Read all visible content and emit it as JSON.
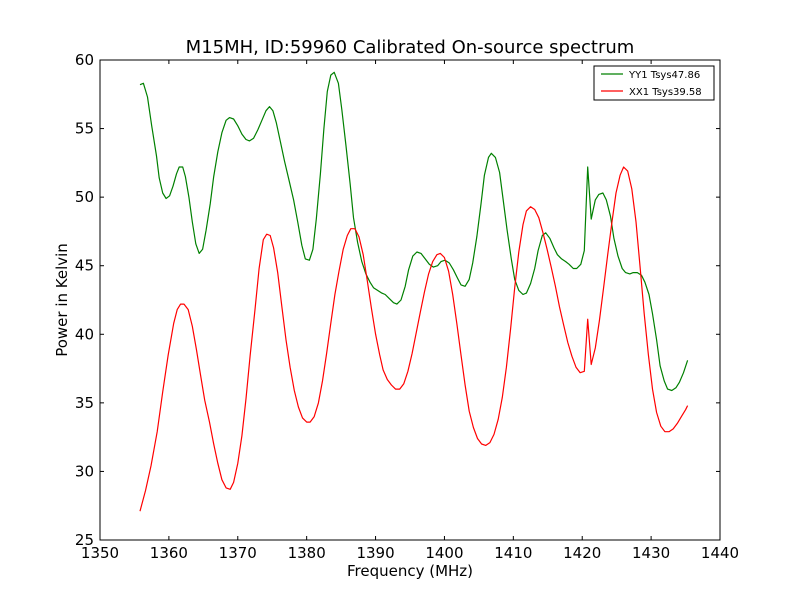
{
  "chart_data": {
    "type": "line",
    "title": "M15MH, ID:59960 Calibrated On-source spectrum",
    "xlabel": "Frequency (MHz)",
    "ylabel": "Power in Kelvin",
    "xlim": [
      1350,
      1440
    ],
    "ylim": [
      25,
      60
    ],
    "xticks": [
      "1350",
      "1360",
      "1370",
      "1380",
      "1390",
      "1400",
      "1410",
      "1420",
      "1430",
      "1440"
    ],
    "yticks": [
      "25",
      "30",
      "35",
      "40",
      "45",
      "50",
      "55",
      "60"
    ],
    "grid": false,
    "legend_position": "top-right",
    "series": [
      {
        "name": "YY1 Tsys47.86",
        "color": "#008000",
        "points": [
          [
            1355.8,
            58.2
          ],
          [
            1356.3,
            58.3
          ],
          [
            1356.9,
            57.3
          ],
          [
            1357.5,
            55.2
          ],
          [
            1358.2,
            53.0
          ],
          [
            1358.6,
            51.4
          ],
          [
            1359.1,
            50.3
          ],
          [
            1359.6,
            49.9
          ],
          [
            1360.1,
            50.1
          ],
          [
            1360.6,
            50.8
          ],
          [
            1361.1,
            51.7
          ],
          [
            1361.5,
            52.2
          ],
          [
            1362.0,
            52.2
          ],
          [
            1362.4,
            51.5
          ],
          [
            1362.9,
            50.0
          ],
          [
            1363.4,
            48.2
          ],
          [
            1363.9,
            46.6
          ],
          [
            1364.4,
            45.9
          ],
          [
            1364.9,
            46.2
          ],
          [
            1365.4,
            47.6
          ],
          [
            1366.0,
            49.5
          ],
          [
            1366.5,
            51.5
          ],
          [
            1367.1,
            53.3
          ],
          [
            1367.7,
            54.7
          ],
          [
            1368.3,
            55.6
          ],
          [
            1368.8,
            55.8
          ],
          [
            1369.4,
            55.7
          ],
          [
            1370.0,
            55.2
          ],
          [
            1370.6,
            54.6
          ],
          [
            1371.2,
            54.2
          ],
          [
            1371.7,
            54.1
          ],
          [
            1372.3,
            54.3
          ],
          [
            1372.9,
            54.9
          ],
          [
            1373.5,
            55.6
          ],
          [
            1374.1,
            56.3
          ],
          [
            1374.6,
            56.6
          ],
          [
            1375.1,
            56.3
          ],
          [
            1375.6,
            55.4
          ],
          [
            1376.2,
            54.0
          ],
          [
            1376.8,
            52.6
          ],
          [
            1377.4,
            51.3
          ],
          [
            1378.1,
            49.8
          ],
          [
            1378.7,
            48.2
          ],
          [
            1379.3,
            46.5
          ],
          [
            1379.8,
            45.5
          ],
          [
            1380.4,
            45.4
          ],
          [
            1380.9,
            46.2
          ],
          [
            1381.4,
            48.4
          ],
          [
            1382.0,
            51.7
          ],
          [
            1382.5,
            55.0
          ],
          [
            1383.0,
            57.7
          ],
          [
            1383.5,
            58.9
          ],
          [
            1384.0,
            59.1
          ],
          [
            1384.6,
            58.3
          ],
          [
            1385.1,
            56.4
          ],
          [
            1385.7,
            53.8
          ],
          [
            1386.3,
            51.0
          ],
          [
            1386.8,
            48.5
          ],
          [
            1387.4,
            46.7
          ],
          [
            1388.0,
            45.3
          ],
          [
            1388.6,
            44.4
          ],
          [
            1389.2,
            43.8
          ],
          [
            1389.7,
            43.4
          ],
          [
            1390.3,
            43.2
          ],
          [
            1390.9,
            43.0
          ],
          [
            1391.4,
            42.9
          ],
          [
            1392.0,
            42.6
          ],
          [
            1392.6,
            42.3
          ],
          [
            1393.1,
            42.2
          ],
          [
            1393.7,
            42.5
          ],
          [
            1394.3,
            43.5
          ],
          [
            1394.8,
            44.7
          ],
          [
            1395.4,
            45.7
          ],
          [
            1396.0,
            46.0
          ],
          [
            1396.6,
            45.9
          ],
          [
            1397.2,
            45.5
          ],
          [
            1397.8,
            45.1
          ],
          [
            1398.4,
            44.9
          ],
          [
            1399.0,
            45.0
          ],
          [
            1399.5,
            45.3
          ],
          [
            1400.1,
            45.4
          ],
          [
            1400.7,
            45.2
          ],
          [
            1401.3,
            44.7
          ],
          [
            1401.9,
            44.1
          ],
          [
            1402.4,
            43.6
          ],
          [
            1403.0,
            43.5
          ],
          [
            1403.6,
            44.0
          ],
          [
            1404.1,
            45.2
          ],
          [
            1404.7,
            47.1
          ],
          [
            1405.3,
            49.5
          ],
          [
            1405.8,
            51.6
          ],
          [
            1406.4,
            52.9
          ],
          [
            1406.8,
            53.2
          ],
          [
            1407.4,
            52.9
          ],
          [
            1408.0,
            51.8
          ],
          [
            1408.5,
            49.9
          ],
          [
            1409.1,
            47.6
          ],
          [
            1409.7,
            45.5
          ],
          [
            1410.2,
            44.0
          ],
          [
            1410.8,
            43.2
          ],
          [
            1411.4,
            42.9
          ],
          [
            1411.9,
            43.0
          ],
          [
            1412.5,
            43.7
          ],
          [
            1413.1,
            44.8
          ],
          [
            1413.6,
            46.1
          ],
          [
            1414.2,
            47.2
          ],
          [
            1414.7,
            47.4
          ],
          [
            1415.3,
            47.0
          ],
          [
            1415.9,
            46.3
          ],
          [
            1416.4,
            45.8
          ],
          [
            1417.0,
            45.5
          ],
          [
            1417.6,
            45.3
          ],
          [
            1418.1,
            45.1
          ],
          [
            1418.7,
            44.8
          ],
          [
            1419.2,
            44.8
          ],
          [
            1419.8,
            45.1
          ],
          [
            1420.3,
            46.1
          ],
          [
            1420.8,
            52.2
          ],
          [
            1421.3,
            48.4
          ],
          [
            1421.9,
            49.8
          ],
          [
            1422.4,
            50.2
          ],
          [
            1423.0,
            50.3
          ],
          [
            1423.5,
            49.8
          ],
          [
            1424.1,
            48.6
          ],
          [
            1424.6,
            47.0
          ],
          [
            1425.2,
            45.7
          ],
          [
            1425.8,
            44.8
          ],
          [
            1426.3,
            44.5
          ],
          [
            1426.9,
            44.4
          ],
          [
            1427.4,
            44.5
          ],
          [
            1428.0,
            44.5
          ],
          [
            1428.6,
            44.3
          ],
          [
            1429.1,
            43.8
          ],
          [
            1429.7,
            42.9
          ],
          [
            1430.2,
            41.5
          ],
          [
            1430.8,
            39.6
          ],
          [
            1431.3,
            37.7
          ],
          [
            1431.9,
            36.6
          ],
          [
            1432.4,
            36.0
          ],
          [
            1433.0,
            35.9
          ],
          [
            1433.6,
            36.1
          ],
          [
            1434.1,
            36.5
          ],
          [
            1434.7,
            37.2
          ],
          [
            1435.3,
            38.1
          ]
        ]
      },
      {
        "name": "XX1 Tsys39.58",
        "color": "#ff0000",
        "points": [
          [
            1355.8,
            27.1
          ],
          [
            1356.6,
            28.6
          ],
          [
            1357.4,
            30.4
          ],
          [
            1358.3,
            32.9
          ],
          [
            1359.1,
            35.8
          ],
          [
            1359.9,
            38.5
          ],
          [
            1360.7,
            40.8
          ],
          [
            1361.2,
            41.8
          ],
          [
            1361.7,
            42.2
          ],
          [
            1362.2,
            42.2
          ],
          [
            1362.8,
            41.8
          ],
          [
            1363.4,
            40.6
          ],
          [
            1364.0,
            38.9
          ],
          [
            1364.6,
            37.0
          ],
          [
            1365.2,
            35.2
          ],
          [
            1365.9,
            33.6
          ],
          [
            1366.5,
            32.0
          ],
          [
            1367.1,
            30.6
          ],
          [
            1367.7,
            29.4
          ],
          [
            1368.3,
            28.8
          ],
          [
            1368.9,
            28.7
          ],
          [
            1369.4,
            29.2
          ],
          [
            1370.0,
            30.6
          ],
          [
            1370.6,
            32.6
          ],
          [
            1371.2,
            35.3
          ],
          [
            1371.8,
            38.5
          ],
          [
            1372.5,
            41.8
          ],
          [
            1373.1,
            44.8
          ],
          [
            1373.7,
            46.9
          ],
          [
            1374.2,
            47.3
          ],
          [
            1374.7,
            47.2
          ],
          [
            1375.2,
            46.3
          ],
          [
            1375.8,
            44.5
          ],
          [
            1376.4,
            42.0
          ],
          [
            1377.0,
            39.6
          ],
          [
            1377.6,
            37.6
          ],
          [
            1378.2,
            35.9
          ],
          [
            1378.8,
            34.7
          ],
          [
            1379.4,
            33.9
          ],
          [
            1380.0,
            33.6
          ],
          [
            1380.5,
            33.6
          ],
          [
            1381.1,
            34.0
          ],
          [
            1381.7,
            35.0
          ],
          [
            1382.3,
            36.6
          ],
          [
            1382.9,
            38.6
          ],
          [
            1383.5,
            40.8
          ],
          [
            1384.1,
            42.9
          ],
          [
            1384.7,
            44.6
          ],
          [
            1385.3,
            46.2
          ],
          [
            1385.9,
            47.2
          ],
          [
            1386.4,
            47.7
          ],
          [
            1387.0,
            47.7
          ],
          [
            1387.6,
            47.1
          ],
          [
            1388.2,
            45.8
          ],
          [
            1388.8,
            43.9
          ],
          [
            1389.4,
            41.9
          ],
          [
            1390.0,
            40.0
          ],
          [
            1390.6,
            38.5
          ],
          [
            1391.1,
            37.4
          ],
          [
            1391.7,
            36.7
          ],
          [
            1392.3,
            36.3
          ],
          [
            1392.9,
            36.0
          ],
          [
            1393.5,
            36.0
          ],
          [
            1394.1,
            36.4
          ],
          [
            1394.7,
            37.3
          ],
          [
            1395.3,
            38.6
          ],
          [
            1395.9,
            40.1
          ],
          [
            1396.5,
            41.6
          ],
          [
            1397.1,
            43.1
          ],
          [
            1397.7,
            44.4
          ],
          [
            1398.3,
            45.3
          ],
          [
            1398.9,
            45.8
          ],
          [
            1399.4,
            45.9
          ],
          [
            1400.0,
            45.6
          ],
          [
            1400.6,
            44.6
          ],
          [
            1401.2,
            42.9
          ],
          [
            1401.8,
            40.8
          ],
          [
            1402.4,
            38.5
          ],
          [
            1403.0,
            36.3
          ],
          [
            1403.6,
            34.4
          ],
          [
            1404.2,
            33.2
          ],
          [
            1404.8,
            32.4
          ],
          [
            1405.4,
            32.0
          ],
          [
            1406.0,
            31.9
          ],
          [
            1406.6,
            32.1
          ],
          [
            1407.2,
            32.7
          ],
          [
            1407.8,
            33.8
          ],
          [
            1408.4,
            35.4
          ],
          [
            1409.0,
            37.6
          ],
          [
            1409.6,
            40.4
          ],
          [
            1410.2,
            43.4
          ],
          [
            1410.8,
            46.0
          ],
          [
            1411.4,
            48.0
          ],
          [
            1411.9,
            49.0
          ],
          [
            1412.5,
            49.3
          ],
          [
            1413.1,
            49.1
          ],
          [
            1413.7,
            48.5
          ],
          [
            1414.3,
            47.4
          ],
          [
            1414.9,
            46.2
          ],
          [
            1415.5,
            44.9
          ],
          [
            1416.1,
            43.5
          ],
          [
            1416.7,
            42.0
          ],
          [
            1417.3,
            40.7
          ],
          [
            1417.9,
            39.4
          ],
          [
            1418.5,
            38.4
          ],
          [
            1419.1,
            37.6
          ],
          [
            1419.7,
            37.2
          ],
          [
            1420.3,
            37.3
          ],
          [
            1420.8,
            41.1
          ],
          [
            1421.3,
            37.8
          ],
          [
            1421.9,
            39.0
          ],
          [
            1422.5,
            41.0
          ],
          [
            1423.1,
            43.4
          ],
          [
            1423.7,
            45.8
          ],
          [
            1424.3,
            48.1
          ],
          [
            1424.9,
            50.3
          ],
          [
            1425.5,
            51.6
          ],
          [
            1426.0,
            52.2
          ],
          [
            1426.6,
            51.9
          ],
          [
            1427.2,
            50.6
          ],
          [
            1427.8,
            48.2
          ],
          [
            1428.4,
            44.9
          ],
          [
            1429.0,
            41.5
          ],
          [
            1429.6,
            38.5
          ],
          [
            1430.2,
            36.0
          ],
          [
            1430.8,
            34.3
          ],
          [
            1431.4,
            33.3
          ],
          [
            1432.0,
            32.9
          ],
          [
            1432.6,
            32.9
          ],
          [
            1433.2,
            33.1
          ],
          [
            1433.8,
            33.5
          ],
          [
            1434.4,
            34.0
          ],
          [
            1435.0,
            34.5
          ],
          [
            1435.3,
            34.8
          ]
        ]
      }
    ]
  }
}
